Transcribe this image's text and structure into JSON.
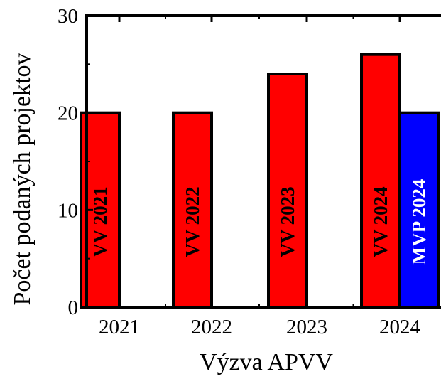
{
  "chart_data": {
    "type": "bar",
    "categories": [
      "2021",
      "2022",
      "2023",
      "2024"
    ],
    "series": [
      {
        "color": "#ff0000",
        "values": [
          20,
          20,
          24,
          26
        ],
        "bar_labels": [
          "VV 2021",
          "VV 2022",
          "VV 2023",
          "VV 2024"
        ],
        "label_color": "#000000"
      },
      {
        "color": "#0000ff",
        "values": [
          null,
          null,
          null,
          20
        ],
        "bar_labels": [
          "",
          "",
          "",
          "MVP 2024"
        ],
        "label_color": "#ffffff"
      }
    ],
    "xlabel": "Výzva APVV",
    "ylabel": "Počet podaných projektov",
    "ylim": [
      0,
      30
    ],
    "yticks": [
      0,
      10,
      20,
      30
    ],
    "grid": false,
    "legend": "none"
  }
}
